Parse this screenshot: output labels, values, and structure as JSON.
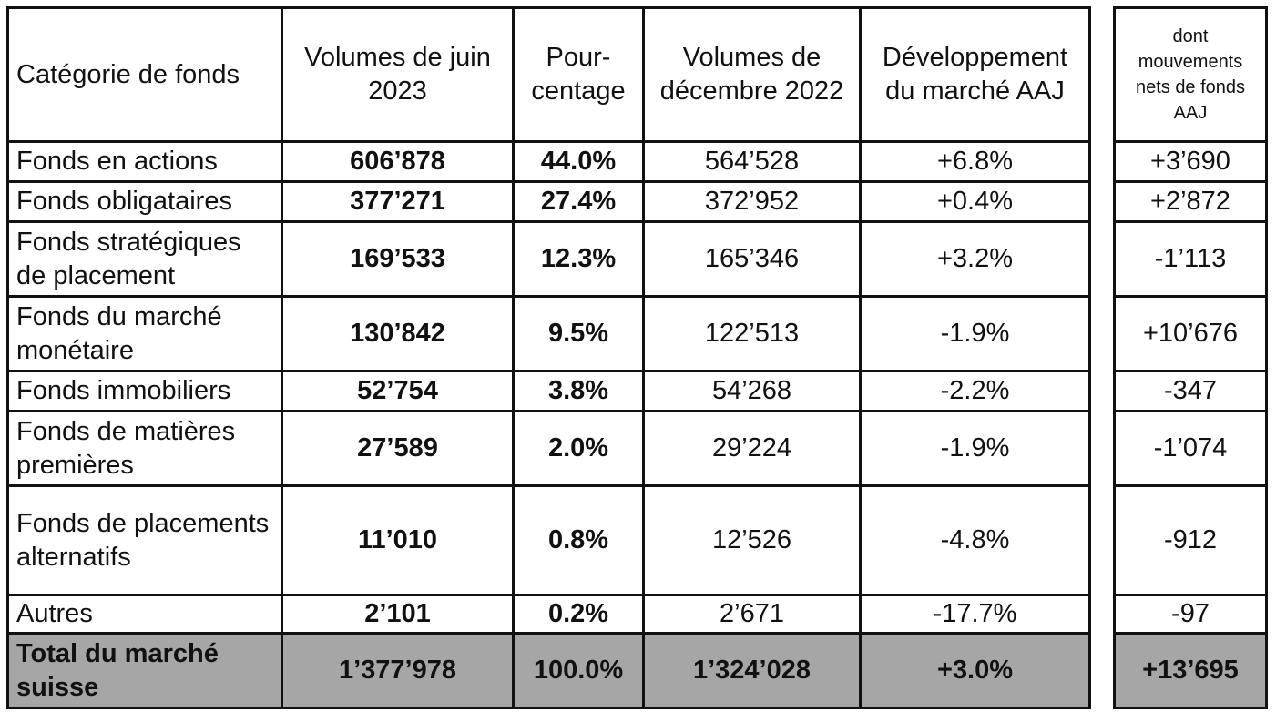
{
  "headers": {
    "category": "Catégorie de fonds",
    "june": "Volumes de juin 2023",
    "percent": "Pour-centage",
    "december": "Volumes de décembre 2022",
    "development": "Développement du marché AAJ",
    "net_flows": "dont mouvements nets de fonds AAJ"
  },
  "rows": [
    {
      "category": "Fonds en actions",
      "june": "606’878",
      "percent": "44.0%",
      "december": "564’528",
      "development": "+6.8%",
      "net_flows": "+3’690"
    },
    {
      "category": "Fonds obligataires",
      "june": "377’271",
      "percent": "27.4%",
      "december": "372’952",
      "development": "+0.4%",
      "net_flows": "+2’872"
    },
    {
      "category": "Fonds stratégiques de placement",
      "june": "169’533",
      "percent": "12.3%",
      "december": "165’346",
      "development": "+3.2%",
      "net_flows": "-1’113"
    },
    {
      "category": "Fonds du marché monétaire",
      "june": "130’842",
      "percent": "9.5%",
      "december": "122’513",
      "development": "-1.9%",
      "net_flows": "+10’676"
    },
    {
      "category": "Fonds immobiliers",
      "june": "52’754",
      "percent": "3.8%",
      "december": "54’268",
      "development": "-2.2%",
      "net_flows": "-347"
    },
    {
      "category": "Fonds de matières premières",
      "june": "27’589",
      "percent": "2.0%",
      "december": "29’224",
      "development": "-1.9%",
      "net_flows": "-1’074"
    },
    {
      "category": "Fonds de placements alternatifs",
      "june": "11’010",
      "percent": "0.8%",
      "december": "12’526",
      "development": "-4.8%",
      "net_flows": "-912"
    },
    {
      "category": "Autres",
      "june": "2’101",
      "percent": "0.2%",
      "december": "2’671",
      "development": "-17.7%",
      "net_flows": "-97"
    }
  ],
  "total": {
    "category": "Total du marché suisse",
    "june": "1’377’978",
    "percent": "100.0%",
    "december": "1’324’028",
    "development": "+3.0%",
    "net_flows": "+13’695"
  },
  "colors": {
    "total_background": "#a6a6a6",
    "border": "#111111"
  }
}
